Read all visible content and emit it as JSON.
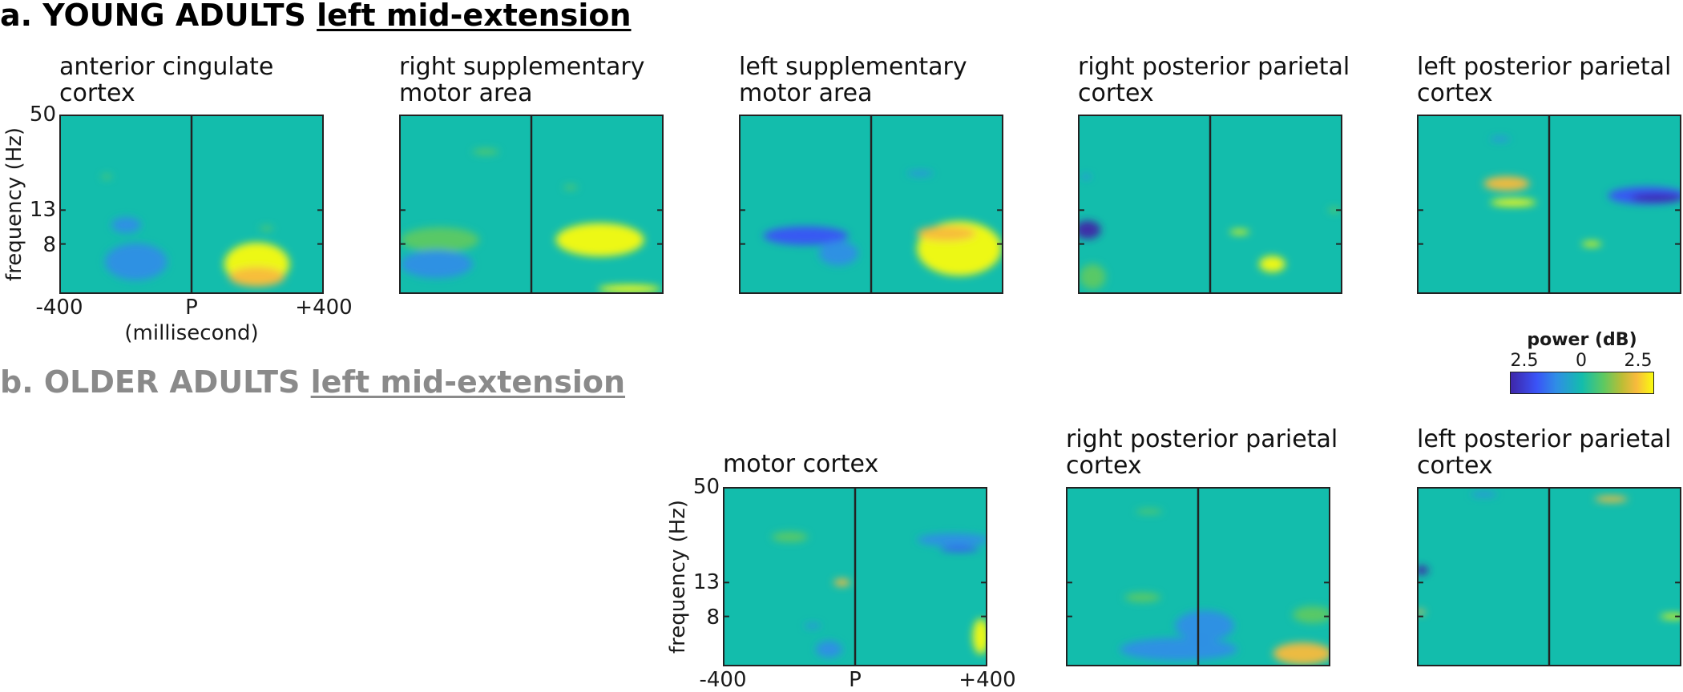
{
  "sections": [
    {
      "id": "a",
      "prefix": "a. YOUNG ADULTS ",
      "underlined": "left mid-extension",
      "color": "#000000"
    },
    {
      "id": "b",
      "prefix": "b. OLDER ADULTS ",
      "underlined": "left mid-extension",
      "color": "#8a8a8a"
    }
  ],
  "axis": {
    "ylabel": "frequency (Hz)",
    "yticks": [
      "50",
      "13",
      "8"
    ],
    "xticks": [
      "-400",
      "P",
      "+400"
    ],
    "xunit": "(millisecond)"
  },
  "colorbar": {
    "title": "power (dB)",
    "ticks": [
      "2.5",
      "0",
      "2.5"
    ],
    "colors": [
      "#3e26a8",
      "#3a53f7",
      "#2f8ee6",
      "#13bdac",
      "#5dc962",
      "#bcbd35",
      "#f8ba3d",
      "#f9fb0e"
    ]
  },
  "panels": [
    {
      "section": "a",
      "title": [
        "anterior cingulate",
        "cortex"
      ]
    },
    {
      "section": "a",
      "title": [
        "right supplementary",
        "motor area"
      ]
    },
    {
      "section": "a",
      "title": [
        "left supplementary",
        "motor area"
      ]
    },
    {
      "section": "a",
      "title": [
        "right posterior parietal",
        "cortex"
      ]
    },
    {
      "section": "a",
      "title": [
        "left posterior parietal",
        "cortex"
      ]
    },
    {
      "section": "b",
      "title": [
        "motor cortex"
      ]
    },
    {
      "section": "b",
      "title": [
        "right posterior parietal",
        "cortex"
      ]
    },
    {
      "section": "b",
      "title": [
        "left posterior parietal",
        "cortex"
      ]
    }
  ],
  "chart_data": {
    "type": "heatmap",
    "x_range_ms": [
      -400,
      400
    ],
    "y_range_hz": [
      4,
      50
    ],
    "color_range_db": [
      -2.5,
      2.5
    ],
    "baseline_color": "#13bdac",
    "event_line_x_ms": 0,
    "panels": [
      {
        "name": "anterior cingulate cortex",
        "blobs": [
          {
            "x": -200,
            "y": 10.5,
            "rx": 45,
            "ry": 1.2,
            "color": "#2f8ee6"
          },
          {
            "x": -170,
            "y": 6.2,
            "rx": 95,
            "ry": 1.6,
            "color": "#2f8ee6"
          },
          {
            "x": 200,
            "y": 6.0,
            "rx": 100,
            "ry": 1.8,
            "color": "#f9fb0e"
          },
          {
            "x": 200,
            "y": 5.0,
            "rx": 85,
            "ry": 0.7,
            "color": "#f8ba3d"
          },
          {
            "x": 230,
            "y": 10.0,
            "rx": 20,
            "ry": 0.3,
            "color": "#5dc962"
          },
          {
            "x": -260,
            "y": 21,
            "rx": 15,
            "ry": 0.6,
            "color": "#5dc962"
          }
        ]
      },
      {
        "name": "right supplementary motor area",
        "blobs": [
          {
            "x": -280,
            "y": 8.5,
            "rx": 120,
            "ry": 1.5,
            "color": "#5dc962"
          },
          {
            "x": -290,
            "y": 6.0,
            "rx": 110,
            "ry": 1.2,
            "color": "#2f8ee6"
          },
          {
            "x": 210,
            "y": 8.5,
            "rx": 135,
            "ry": 2.0,
            "color": "#f9fb0e"
          },
          {
            "x": 300,
            "y": 4.2,
            "rx": 95,
            "ry": 0.3,
            "color": "#f9fb0e"
          },
          {
            "x": 120,
            "y": 18,
            "rx": 20,
            "ry": 0.6,
            "color": "#5dc962"
          },
          {
            "x": -140,
            "y": 30,
            "rx": 40,
            "ry": 1.2,
            "color": "#5dc962"
          }
        ]
      },
      {
        "name": "left supplementary motor area",
        "blobs": [
          {
            "x": -200,
            "y": 9.0,
            "rx": 130,
            "ry": 1.2,
            "color": "#3a53f7"
          },
          {
            "x": -100,
            "y": 7.0,
            "rx": 60,
            "ry": 1.2,
            "color": "#2f8ee6"
          },
          {
            "x": 270,
            "y": 7.5,
            "rx": 130,
            "ry": 2.8,
            "color": "#f9fb0e"
          },
          {
            "x": 230,
            "y": 9.3,
            "rx": 90,
            "ry": 1.0,
            "color": "#f8ba3d"
          },
          {
            "x": 150,
            "y": 22,
            "rx": 40,
            "ry": 0.8,
            "color": "#2f8ee6"
          }
        ]
      },
      {
        "name": "right posterior parietal cortex",
        "blobs": [
          {
            "x": -375,
            "y": 9.8,
            "rx": 40,
            "ry": 1.3,
            "color": "#3e26a8"
          },
          {
            "x": -360,
            "y": 5.0,
            "rx": 40,
            "ry": 0.9,
            "color": "#5dc962"
          },
          {
            "x": 190,
            "y": 6.0,
            "rx": 40,
            "ry": 0.7,
            "color": "#f9fb0e"
          },
          {
            "x": 90,
            "y": 9.5,
            "rx": 30,
            "ry": 0.2,
            "color": "#f9fb0e"
          },
          {
            "x": -380,
            "y": 21,
            "rx": 15,
            "ry": 0.6,
            "color": "#2f8ee6"
          },
          {
            "x": 380,
            "y": 13,
            "rx": 18,
            "ry": 0.5,
            "color": "#5dc962"
          }
        ]
      },
      {
        "name": "left posterior parietal cortex",
        "blobs": [
          {
            "x": -130,
            "y": 19,
            "rx": 70,
            "ry": 2.0,
            "color": "#f8ba3d"
          },
          {
            "x": -110,
            "y": 14.5,
            "rx": 70,
            "ry": 0.8,
            "color": "#f9fb0e"
          },
          {
            "x": 300,
            "y": 16,
            "rx": 120,
            "ry": 2.0,
            "color": "#3a53f7"
          },
          {
            "x": 330,
            "y": 15.5,
            "rx": 80,
            "ry": 0.9,
            "color": "#3e26a8"
          },
          {
            "x": 130,
            "y": 8.0,
            "rx": 30,
            "ry": 0.3,
            "color": "#f9fb0e"
          },
          {
            "x": -150,
            "y": 36,
            "rx": 30,
            "ry": 1.2,
            "color": "#2f8ee6"
          }
        ]
      },
      {
        "name": "motor cortex",
        "blobs": [
          {
            "x": -200,
            "y": 25,
            "rx": 55,
            "ry": 1.8,
            "color": "#5dc962"
          },
          {
            "x": -40,
            "y": 13.0,
            "rx": 25,
            "ry": 0.7,
            "color": "#f8ba3d"
          },
          {
            "x": -80,
            "y": 5.0,
            "rx": 40,
            "ry": 0.6,
            "color": "#2f8ee6"
          },
          {
            "x": -130,
            "y": 7.0,
            "rx": 25,
            "ry": 0.2,
            "color": "#2f8ee6"
          },
          {
            "x": 300,
            "y": 24,
            "rx": 110,
            "ry": 2.2,
            "color": "#2f8ee6"
          },
          {
            "x": 320,
            "y": 21,
            "rx": 60,
            "ry": 0.8,
            "color": "#3a53f7"
          },
          {
            "x": 385,
            "y": 6.0,
            "rx": 25,
            "ry": 1.5,
            "color": "#f9fb0e"
          }
        ]
      },
      {
        "name": "right posterior parietal cortex",
        "blobs": [
          {
            "x": -170,
            "y": 10.5,
            "rx": 55,
            "ry": 0.7,
            "color": "#5dc962"
          },
          {
            "x": -60,
            "y": 5.0,
            "rx": 180,
            "ry": 0.8,
            "color": "#2f8ee6"
          },
          {
            "x": 20,
            "y": 7.0,
            "rx": 90,
            "ry": 1.5,
            "color": "#2f8ee6"
          },
          {
            "x": 320,
            "y": 4.7,
            "rx": 90,
            "ry": 0.8,
            "color": "#f8ba3d"
          },
          {
            "x": 350,
            "y": 8.2,
            "rx": 60,
            "ry": 1.0,
            "color": "#5dc962"
          },
          {
            "x": -150,
            "y": 36,
            "rx": 40,
            "ry": 1.2,
            "color": "#5dc962"
          }
        ]
      },
      {
        "name": "left posterior parietal cortex",
        "blobs": [
          {
            "x": -390,
            "y": 15.5,
            "rx": 20,
            "ry": 1.0,
            "color": "#3e26a8"
          },
          {
            "x": -395,
            "y": 8.5,
            "rx": 15,
            "ry": 0.3,
            "color": "#f8ba3d"
          },
          {
            "x": 190,
            "y": 43,
            "rx": 50,
            "ry": 2.0,
            "color": "#f8ba3d"
          },
          {
            "x": 380,
            "y": 8.0,
            "rx": 40,
            "ry": 0.3,
            "color": "#f9fb0e"
          },
          {
            "x": -200,
            "y": 46,
            "rx": 40,
            "ry": 0.6,
            "color": "#2f8ee6"
          }
        ]
      }
    ]
  }
}
